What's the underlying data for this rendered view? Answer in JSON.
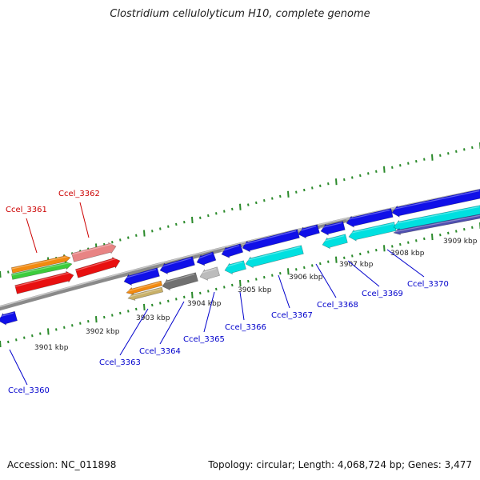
{
  "title": "Clostridium cellulolyticum H10, complete genome",
  "footer": {
    "accession": "Accession: NC_011898",
    "summary": "Topology: circular; Length: 4,068,724 bp; Genes: 3,477"
  },
  "colors": {
    "backbone": "#8a8a8a",
    "tick": "#2a8a2a",
    "label_forward": "#cc0000",
    "label_reverse": "#0000cc"
  },
  "scale_labels": [
    "3901 kbp",
    "3902 kbp",
    "3903 kbp",
    "3904 kbp",
    "3905 kbp",
    "3906 kbp",
    "3907 kbp",
    "3908 kbp",
    "3909 kbp"
  ],
  "genes": [
    {
      "id": "Ccel_3360",
      "strand": "reverse"
    },
    {
      "id": "Ccel_3361",
      "strand": "forward"
    },
    {
      "id": "Ccel_3362",
      "strand": "forward"
    },
    {
      "id": "Ccel_3363",
      "strand": "reverse"
    },
    {
      "id": "Ccel_3364",
      "strand": "reverse"
    },
    {
      "id": "Ccel_3365",
      "strand": "reverse"
    },
    {
      "id": "Ccel_3366",
      "strand": "reverse"
    },
    {
      "id": "Ccel_3367",
      "strand": "reverse"
    },
    {
      "id": "Ccel_3368",
      "strand": "reverse"
    },
    {
      "id": "Ccel_3369",
      "strand": "reverse"
    },
    {
      "id": "Ccel_3370",
      "strand": "reverse"
    }
  ]
}
